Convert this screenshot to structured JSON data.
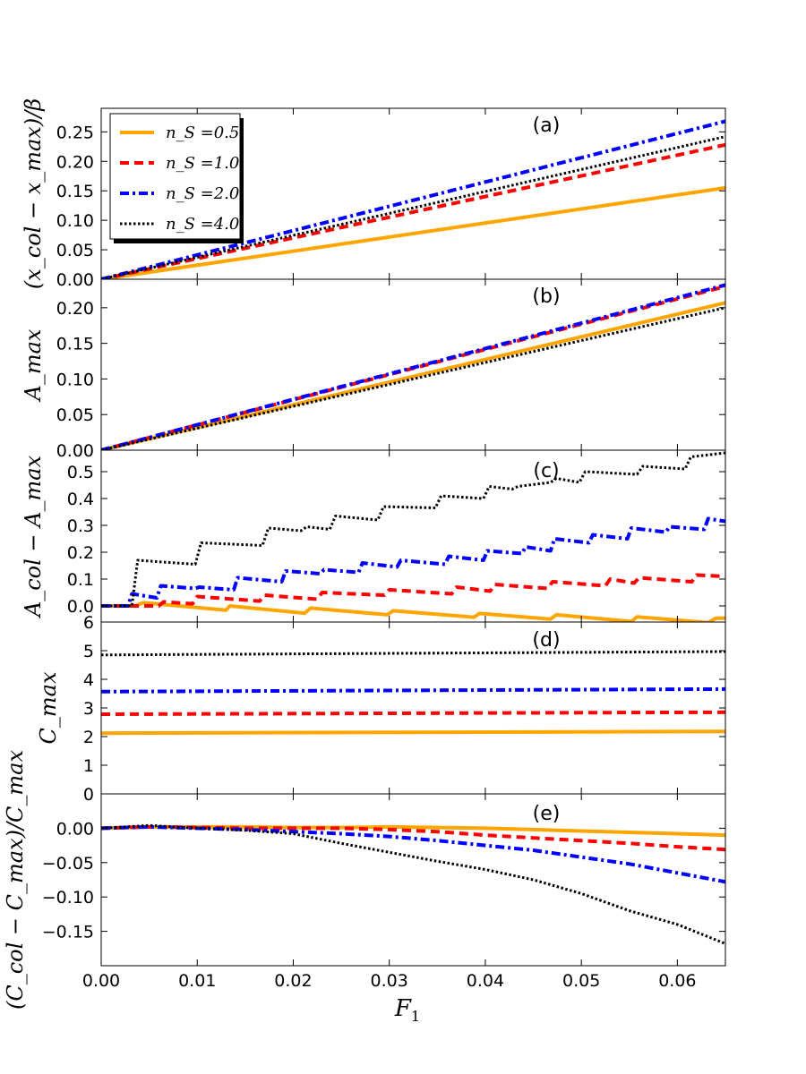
{
  "x_axis": {
    "label": "F",
    "label_sub": "1",
    "range": [
      0,
      0.065
    ],
    "ticks": [
      0.0,
      0.01,
      0.02,
      0.03,
      0.04,
      0.05,
      0.06
    ],
    "tick_labels": [
      "0.00",
      "0.01",
      "0.02",
      "0.03",
      "0.04",
      "0.05",
      "0.06"
    ]
  },
  "legend": {
    "placement": "top-left of panel (a)",
    "entries": [
      {
        "label": "n_S =0.5",
        "color": "#FFA500",
        "style": "solid"
      },
      {
        "label": "n_S =1.0",
        "color": "#FF0000",
        "style": "dashed"
      },
      {
        "label": "n_S =2.0",
        "color": "#0000FF",
        "style": "dashdot"
      },
      {
        "label": "n_S =4.0",
        "color": "#000000",
        "style": "dotted"
      }
    ]
  },
  "chart_data": [
    {
      "type": "line",
      "panel": "(a)",
      "ylabel": "(x_col − x_max)/β",
      "ylim": [
        0,
        0.29
      ],
      "yticks": [
        0.0,
        0.05,
        0.1,
        0.15,
        0.2,
        0.25
      ],
      "ytick_labels": [
        "0.00",
        "0.05",
        "0.10",
        "0.15",
        "0.20",
        "0.25"
      ],
      "series": [
        {
          "name": "n_S =0.5",
          "x": [
            0,
            0.065
          ],
          "y": [
            0,
            0.155
          ]
        },
        {
          "name": "n_S =1.0",
          "x": [
            0,
            0.065
          ],
          "y": [
            0,
            0.228
          ]
        },
        {
          "name": "n_S =2.0",
          "x": [
            0,
            0.065
          ],
          "y": [
            0,
            0.268
          ]
        },
        {
          "name": "n_S =4.0",
          "x": [
            0,
            0.065
          ],
          "y": [
            0,
            0.242
          ]
        }
      ]
    },
    {
      "type": "line",
      "panel": "(b)",
      "ylabel": "A_max",
      "ylim": [
        0,
        0.24
      ],
      "yticks": [
        0.0,
        0.05,
        0.1,
        0.15,
        0.2
      ],
      "ytick_labels": [
        "0.00",
        "0.05",
        "0.10",
        "0.15",
        "0.20"
      ],
      "series": [
        {
          "name": "n_S =0.5",
          "x": [
            0,
            0.065
          ],
          "y": [
            0,
            0.207
          ]
        },
        {
          "name": "n_S =1.0",
          "x": [
            0,
            0.065
          ],
          "y": [
            0,
            0.23
          ]
        },
        {
          "name": "n_S =2.0",
          "x": [
            0,
            0.065
          ],
          "y": [
            0,
            0.232
          ]
        },
        {
          "name": "n_S =4.0",
          "x": [
            0,
            0.065
          ],
          "y": [
            0,
            0.2
          ]
        }
      ]
    },
    {
      "type": "line",
      "panel": "(c)",
      "ylabel": "A_col − A_max",
      "ylim": [
        -0.06,
        0.58
      ],
      "yticks": [
        0.0,
        0.1,
        0.2,
        0.3,
        0.4,
        0.5
      ],
      "ytick_labels": [
        "0.0",
        "0.1",
        "0.2",
        "0.3",
        "0.4",
        "0.5"
      ],
      "series": [
        {
          "name": "n_S =0.5",
          "x": [
            0,
            0.0035,
            0.0044,
            0.013,
            0.0134,
            0.0212,
            0.0218,
            0.0298,
            0.0304,
            0.0388,
            0.0394,
            0.0468,
            0.0474,
            0.0552,
            0.0558,
            0.0632,
            0.064,
            0.065
          ],
          "y": [
            0,
            0,
            0.012,
            -0.016,
            0,
            -0.027,
            -0.008,
            -0.033,
            -0.018,
            -0.042,
            -0.028,
            -0.049,
            -0.033,
            -0.058,
            -0.041,
            -0.062,
            -0.046,
            -0.046
          ]
        },
        {
          "name": "n_S =1.0",
          "x": [
            0,
            0.006,
            0.0065,
            0.0095,
            0.01,
            0.0165,
            0.017,
            0.0225,
            0.023,
            0.0295,
            0.03,
            0.0365,
            0.037,
            0.0405,
            0.041,
            0.0465,
            0.047,
            0.0525,
            0.053,
            0.0555,
            0.056,
            0.0615,
            0.062,
            0.065
          ],
          "y": [
            0,
            0,
            0.015,
            0.008,
            0.035,
            0.018,
            0.04,
            0.025,
            0.05,
            0.04,
            0.06,
            0.045,
            0.07,
            0.055,
            0.08,
            0.065,
            0.09,
            0.075,
            0.1,
            0.085,
            0.105,
            0.09,
            0.115,
            0.11
          ]
        },
        {
          "name": "n_S =2.0",
          "x": [
            0,
            0.0028,
            0.0032,
            0.0058,
            0.0062,
            0.0098,
            0.0102,
            0.0138,
            0.0142,
            0.0188,
            0.0192,
            0.0228,
            0.0232,
            0.0268,
            0.0272,
            0.0308,
            0.0312,
            0.0358,
            0.0362,
            0.0398,
            0.0402,
            0.0438,
            0.0442,
            0.0468,
            0.0472,
            0.0508,
            0.0512,
            0.0548,
            0.0552,
            0.0588,
            0.0592,
            0.0628,
            0.0632,
            0.065
          ],
          "y": [
            0,
            0,
            0.045,
            0.03,
            0.075,
            0.065,
            0.07,
            0.06,
            0.105,
            0.09,
            0.13,
            0.12,
            0.135,
            0.125,
            0.16,
            0.145,
            0.17,
            0.155,
            0.185,
            0.17,
            0.205,
            0.195,
            0.22,
            0.205,
            0.25,
            0.235,
            0.265,
            0.25,
            0.29,
            0.275,
            0.295,
            0.285,
            0.325,
            0.315
          ]
        },
        {
          "name": "n_S =4.0",
          "x": [
            0,
            0.0032,
            0.0038,
            0.0098,
            0.0104,
            0.0168,
            0.0174,
            0.0208,
            0.0214,
            0.0238,
            0.0244,
            0.0288,
            0.0294,
            0.0348,
            0.0354,
            0.0398,
            0.0404,
            0.0428,
            0.0434,
            0.0468,
            0.0474,
            0.0498,
            0.0504,
            0.0558,
            0.0564,
            0.0608,
            0.0614,
            0.065
          ],
          "y": [
            0,
            0,
            0.17,
            0.155,
            0.235,
            0.225,
            0.29,
            0.28,
            0.295,
            0.285,
            0.335,
            0.32,
            0.37,
            0.365,
            0.41,
            0.4,
            0.445,
            0.435,
            0.445,
            0.46,
            0.475,
            0.46,
            0.5,
            0.49,
            0.52,
            0.51,
            0.555,
            0.57
          ]
        }
      ]
    },
    {
      "type": "line",
      "panel": "(d)",
      "ylabel": "C_max",
      "ylim": [
        0,
        6
      ],
      "yticks": [
        0,
        1,
        2,
        3,
        4,
        5,
        6
      ],
      "ytick_labels": [
        "0",
        "1",
        "2",
        "3",
        "4",
        "5",
        "6"
      ],
      "series": [
        {
          "name": "n_S =0.5",
          "x": [
            0,
            0.065
          ],
          "y": [
            2.12,
            2.18
          ]
        },
        {
          "name": "n_S =1.0",
          "x": [
            0,
            0.065
          ],
          "y": [
            2.78,
            2.85
          ]
        },
        {
          "name": "n_S =2.0",
          "x": [
            0,
            0.065
          ],
          "y": [
            3.57,
            3.66
          ]
        },
        {
          "name": "n_S =4.0",
          "x": [
            0,
            0.065
          ],
          "y": [
            4.85,
            4.97
          ]
        }
      ]
    },
    {
      "type": "line",
      "panel": "(e)",
      "ylabel": "(C_col − C_max)/C_max",
      "ylim": [
        -0.2,
        0.05
      ],
      "yticks": [
        -0.15,
        -0.1,
        -0.05,
        0.0
      ],
      "ytick_labels": [
        "−0.15",
        "−0.10",
        "−0.05",
        "0.00"
      ],
      "series": [
        {
          "name": "n_S =0.5",
          "x": [
            0,
            0.005,
            0.01,
            0.015,
            0.02,
            0.025,
            0.03,
            0.035,
            0.04,
            0.045,
            0.05,
            0.055,
            0.06,
            0.065
          ],
          "y": [
            0,
            0.002,
            0.002,
            0.002,
            0.001,
            0.001,
            0.002,
            0.001,
            0,
            -0.002,
            -0.004,
            -0.006,
            -0.008,
            -0.01
          ]
        },
        {
          "name": "n_S =1.0",
          "x": [
            0,
            0.005,
            0.01,
            0.015,
            0.02,
            0.025,
            0.03,
            0.035,
            0.04,
            0.045,
            0.05,
            0.055,
            0.06,
            0.065
          ],
          "y": [
            0,
            0.002,
            0.001,
            0,
            0,
            0,
            -0.002,
            -0.005,
            -0.01,
            -0.014,
            -0.018,
            -0.022,
            -0.027,
            -0.031
          ]
        },
        {
          "name": "n_S =2.0",
          "x": [
            0,
            0.005,
            0.01,
            0.015,
            0.02,
            0.025,
            0.03,
            0.035,
            0.04,
            0.045,
            0.05,
            0.055,
            0.06,
            0.065
          ],
          "y": [
            0,
            0.002,
            0,
            -0.002,
            -0.005,
            -0.008,
            -0.012,
            -0.018,
            -0.025,
            -0.032,
            -0.042,
            -0.052,
            -0.065,
            -0.078
          ]
        },
        {
          "name": "n_S =4.0",
          "x": [
            0,
            0.005,
            0.01,
            0.015,
            0.02,
            0.025,
            0.03,
            0.035,
            0.04,
            0.045,
            0.05,
            0.055,
            0.06,
            0.065
          ],
          "y": [
            0,
            0.004,
            0,
            -0.003,
            -0.008,
            -0.022,
            -0.035,
            -0.048,
            -0.06,
            -0.075,
            -0.095,
            -0.12,
            -0.14,
            -0.168
          ]
        }
      ]
    }
  ],
  "panel_labels": [
    "(a)",
    "(b)",
    "(c)",
    "(d)",
    "(e)"
  ]
}
